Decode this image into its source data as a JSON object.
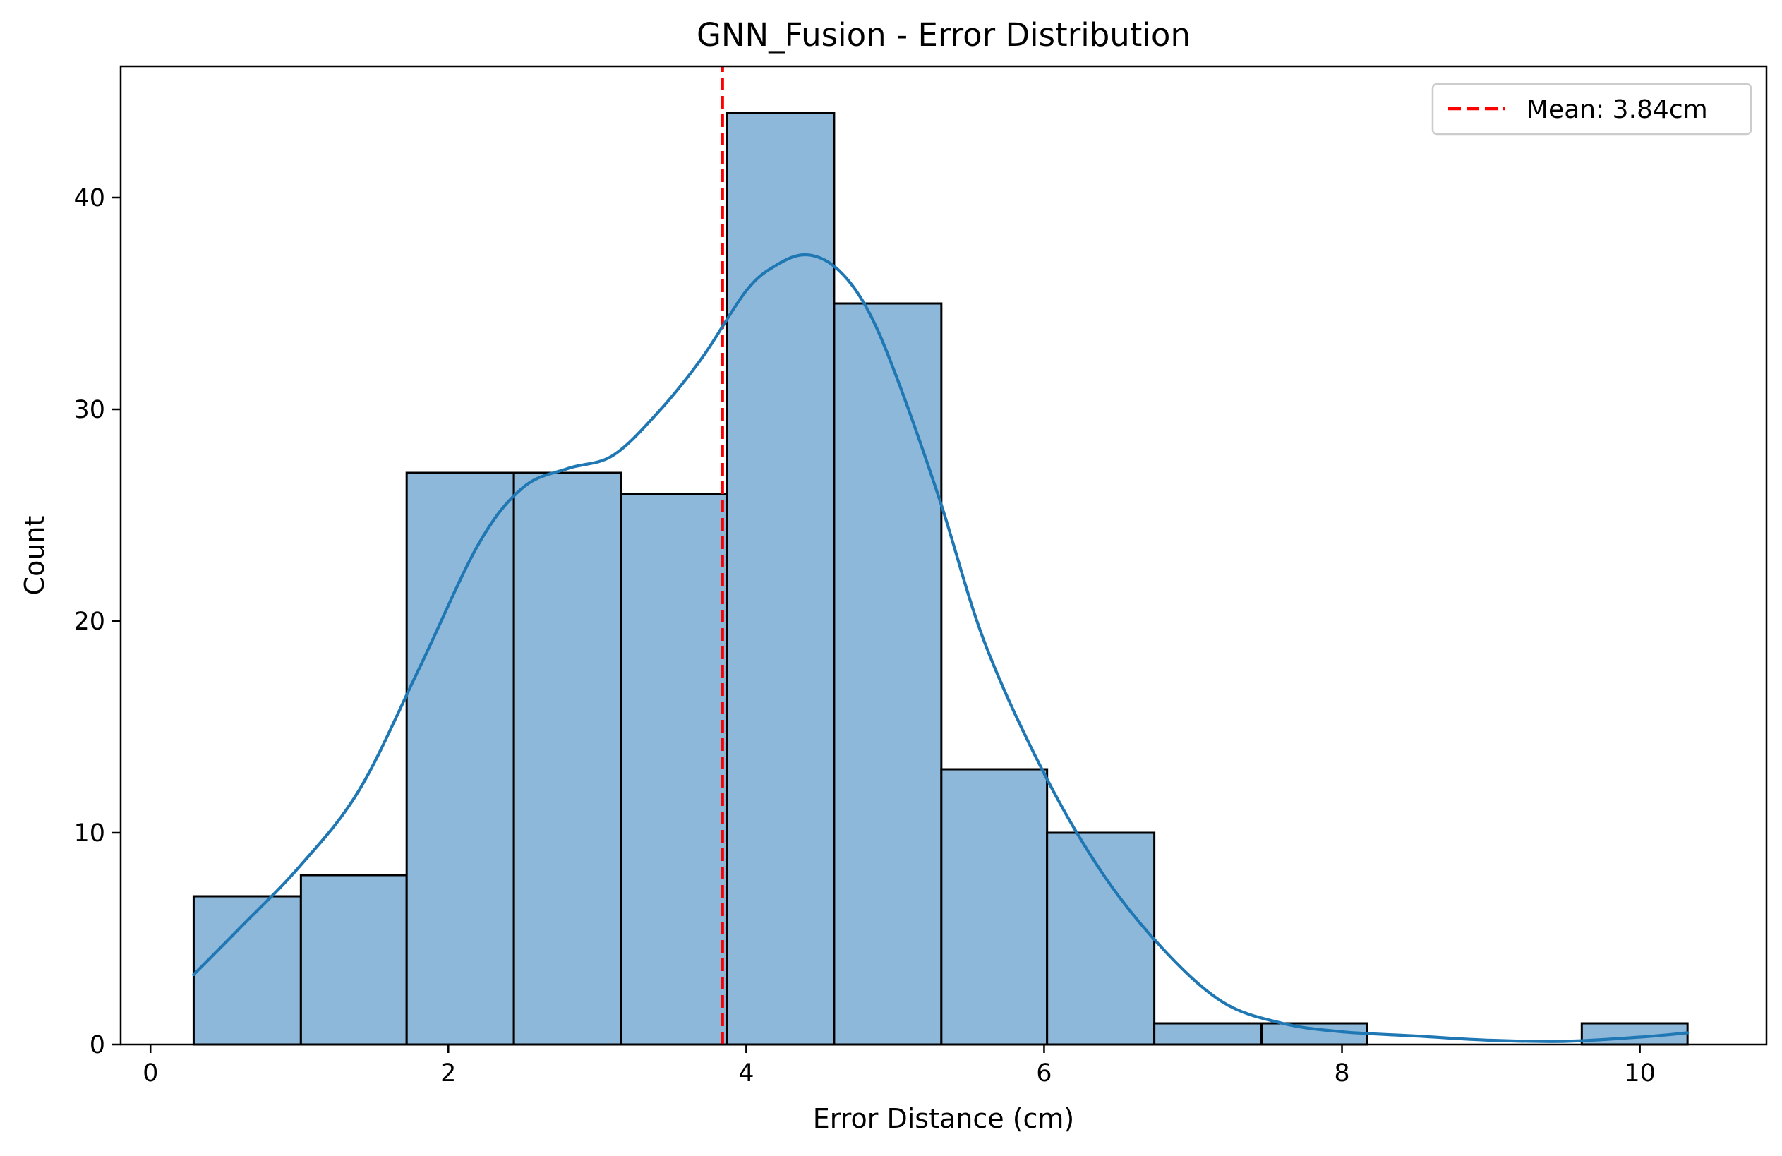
{
  "chart_data": {
    "type": "bar",
    "title": "GNN_Fusion - Error Distribution",
    "xlabel": "Error Distance (cm)",
    "ylabel": "Count",
    "xlim": [
      -0.2,
      10.85
    ],
    "ylim": [
      0,
      46.2
    ],
    "xticks": [
      0,
      2,
      4,
      6,
      8,
      10
    ],
    "xtick_labels": [
      "0",
      "2",
      "4",
      "6",
      "8",
      "10"
    ],
    "yticks": [
      0,
      10,
      20,
      30,
      40
    ],
    "ytick_labels": [
      "0",
      "10",
      "20",
      "30",
      "40"
    ],
    "grid": false,
    "bins": [
      {
        "x0": 0.29,
        "x1": 1.01,
        "count": 7
      },
      {
        "x0": 1.01,
        "x1": 1.72,
        "count": 8
      },
      {
        "x0": 1.72,
        "x1": 2.44,
        "count": 27
      },
      {
        "x0": 2.44,
        "x1": 3.16,
        "count": 27
      },
      {
        "x0": 3.16,
        "x1": 3.87,
        "count": 26
      },
      {
        "x0": 3.87,
        "x1": 4.59,
        "count": 44
      },
      {
        "x0": 4.59,
        "x1": 5.31,
        "count": 35
      },
      {
        "x0": 5.31,
        "x1": 6.02,
        "count": 13
      },
      {
        "x0": 6.02,
        "x1": 6.74,
        "count": 10
      },
      {
        "x0": 6.74,
        "x1": 7.46,
        "count": 1
      },
      {
        "x0": 7.46,
        "x1": 8.17,
        "count": 1
      },
      {
        "x0": 8.17,
        "x1": 8.89,
        "count": 0
      },
      {
        "x0": 8.89,
        "x1": 9.61,
        "count": 0
      },
      {
        "x0": 9.61,
        "x1": 10.32,
        "count": 1
      }
    ],
    "kde": {
      "x": [
        0.29,
        0.6,
        1.0,
        1.4,
        1.8,
        2.2,
        2.5,
        2.8,
        3.1,
        3.4,
        3.7,
        4.0,
        4.2,
        4.4,
        4.6,
        4.8,
        5.0,
        5.3,
        5.6,
        6.0,
        6.4,
        6.8,
        7.2,
        7.6,
        8.0,
        8.5,
        9.0,
        9.5,
        10.0,
        10.32
      ],
      "y": [
        3.3,
        5.5,
        8.4,
        12.0,
        17.7,
        23.6,
        26.3,
        27.2,
        27.8,
        29.8,
        32.4,
        35.6,
        36.8,
        37.3,
        36.7,
        34.9,
        31.7,
        25.7,
        19.0,
        12.8,
        8.0,
        4.5,
        2.0,
        1.0,
        0.6,
        0.4,
        0.2,
        0.15,
        0.35,
        0.55
      ]
    },
    "mean": 3.84,
    "legend": {
      "label": "Mean: 3.84cm",
      "position": "upper right"
    },
    "colors": {
      "bar_fill": "#8db8d9",
      "kde_line": "#1f77b4",
      "mean_line": "#ff0000"
    }
  }
}
